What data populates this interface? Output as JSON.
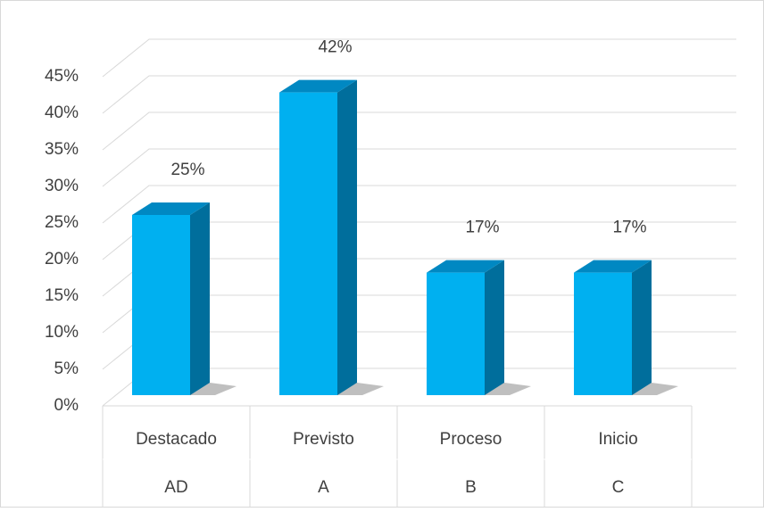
{
  "chart_data": {
    "type": "bar3d",
    "categories": [
      "Destacado",
      "Previsto",
      "Proceso",
      "Inicio"
    ],
    "subcategories": [
      "AD",
      "A",
      "B",
      "C"
    ],
    "values": [
      25,
      42,
      17,
      17
    ],
    "value_labels": [
      "25%",
      "42%",
      "17%",
      "17%"
    ],
    "color": "#00b0f0",
    "ylim": [
      0,
      45
    ],
    "yticks": [
      {
        "value": 0,
        "label": "0%"
      },
      {
        "value": 5,
        "label": "5%"
      },
      {
        "value": 10,
        "label": "10%"
      },
      {
        "value": 15,
        "label": "15%"
      },
      {
        "value": 20,
        "label": "20%"
      },
      {
        "value": 25,
        "label": "25%"
      },
      {
        "value": 30,
        "label": "30%"
      },
      {
        "value": 35,
        "label": "35%"
      },
      {
        "value": 40,
        "label": "40%"
      },
      {
        "value": 45,
        "label": "45%"
      }
    ],
    "grid": true
  }
}
